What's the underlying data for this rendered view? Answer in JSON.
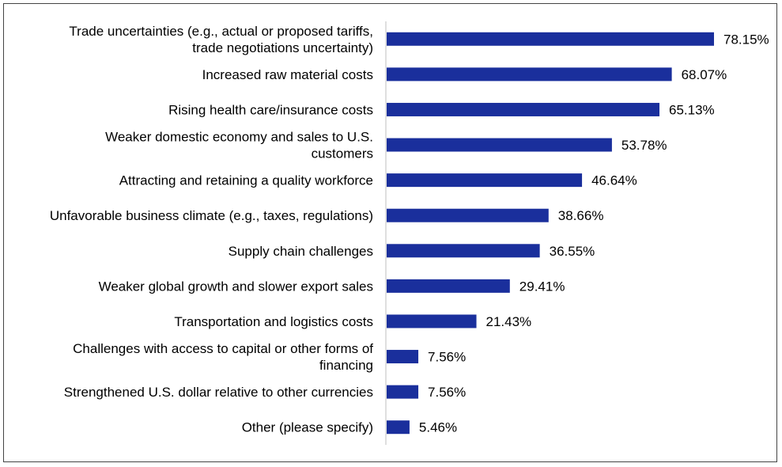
{
  "chart_data": {
    "type": "bar",
    "orientation": "horizontal",
    "title": "",
    "xlabel": "",
    "ylabel": "",
    "xlim": [
      0,
      80
    ],
    "grid": false,
    "legend": "none",
    "bar_color": "#1a2f9c",
    "axis_color": "#bfbfbf",
    "value_suffix": "%",
    "categories": [
      [
        "Trade uncertainties (e.g., actual or proposed tariffs,",
        "trade negotiations uncertainty)"
      ],
      [
        "Increased raw material costs"
      ],
      [
        "Rising health care/insurance costs"
      ],
      [
        "Weaker domestic economy and sales to U.S.",
        "customers"
      ],
      [
        "Attracting and retaining a quality workforce"
      ],
      [
        "Unfavorable business climate (e.g., taxes, regulations)"
      ],
      [
        "Supply chain challenges"
      ],
      [
        "Weaker global growth and slower export sales"
      ],
      [
        "Transportation and logistics costs"
      ],
      [
        "Challenges with access to capital or other forms of",
        "financing"
      ],
      [
        "Strengthened U.S. dollar relative to other currencies"
      ],
      [
        "Other (please specify)"
      ]
    ],
    "values": [
      78.15,
      68.07,
      65.13,
      53.78,
      46.64,
      38.66,
      36.55,
      29.41,
      21.43,
      7.56,
      7.56,
      5.46
    ],
    "value_labels": [
      "78.15%",
      "68.07%",
      "65.13%",
      "53.78%",
      "46.64%",
      "38.66%",
      "36.55%",
      "29.41%",
      "21.43%",
      "7.56%",
      "7.56%",
      "5.46%"
    ]
  }
}
